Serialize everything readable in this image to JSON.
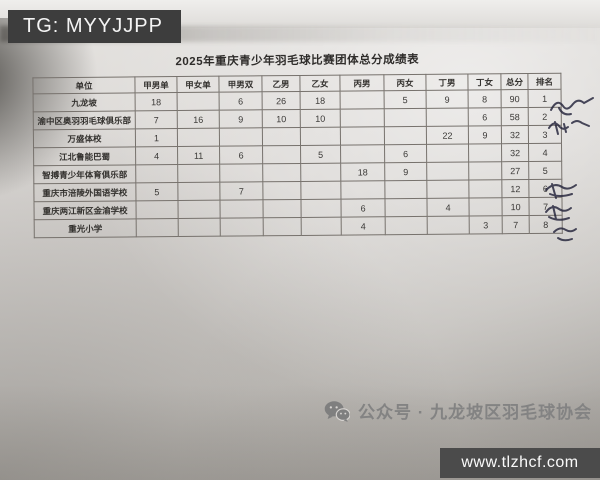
{
  "overlay": {
    "tg_label": "TG: MYYJJPP",
    "watermark": "www.tlzhcf.com"
  },
  "caption": {
    "icon": "wechat-icon",
    "text": "公众号 · 九龙坡区羽毛球协会"
  },
  "document": {
    "title": "2025年重庆青少年羽毛球比赛团体总分成绩表",
    "table": {
      "columns": [
        "单位",
        "甲男单",
        "甲女单",
        "甲男双",
        "乙男",
        "乙女",
        "丙男",
        "丙女",
        "丁男",
        "丁女",
        "总分",
        "排名"
      ],
      "rows": [
        {
          "unit": "九龙坡",
          "values": [
            "18",
            "",
            "6",
            "26",
            "18",
            "",
            "5",
            "9",
            "8",
            "90",
            "1"
          ]
        },
        {
          "unit": "渝中区奥羽羽毛球俱乐部",
          "values": [
            "7",
            "16",
            "9",
            "10",
            "10",
            "",
            "",
            "",
            "6",
            "58",
            "2"
          ]
        },
        {
          "unit": "万盛体校",
          "values": [
            "1",
            "",
            "",
            "",
            "",
            "",
            "",
            "22",
            "9",
            "32",
            "3"
          ]
        },
        {
          "unit": "江北鲁能巴蜀",
          "values": [
            "4",
            "11",
            "6",
            "",
            "5",
            "",
            "6",
            "",
            "",
            "32",
            "4"
          ]
        },
        {
          "unit": "智搏青少年体育俱乐部",
          "values": [
            "",
            "",
            "",
            "",
            "",
            "18",
            "9",
            "",
            "",
            "27",
            "5"
          ]
        },
        {
          "unit": "重庆市涪陵外国语学校",
          "values": [
            "5",
            "",
            "7",
            "",
            "",
            "",
            "",
            "",
            "",
            "12",
            "6"
          ]
        },
        {
          "unit": "重庆两江新区金渝学校",
          "values": [
            "",
            "",
            "",
            "",
            "",
            "6",
            "",
            "4",
            "",
            "10",
            "7"
          ]
        },
        {
          "unit": "重光小学",
          "values": [
            "",
            "",
            "",
            "",
            "",
            "4",
            "",
            "",
            "3",
            "7",
            "8"
          ]
        }
      ]
    }
  },
  "colors": {
    "overlay_bar": "#3d3d3d",
    "watermark_bar": "#4b4b4b",
    "caption_gray": "#838383",
    "paper": "#d8d5d2",
    "ink": "#23233a"
  }
}
